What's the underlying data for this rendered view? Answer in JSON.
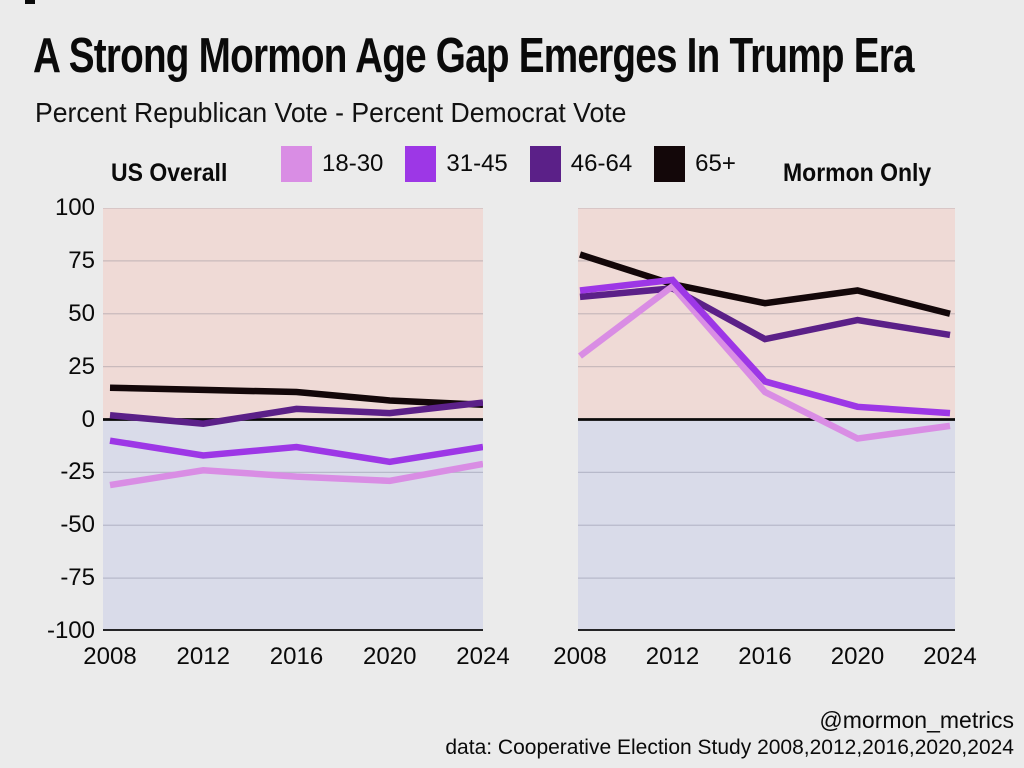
{
  "page": {
    "title": "A Strong Mormon Age Gap Emerges In Trump Era",
    "subtitle": "Percent Republican Vote - Percent Democrat Vote",
    "footer_handle": "@mormon_metrics",
    "footer_source": "data: Cooperative Election Study 2008,2012,2016,2020,2024"
  },
  "colors": {
    "page_bg": "#EBEBEB",
    "text": "#0A0A0A",
    "pos_bg": "#EFDAD6",
    "neg_bg": "#D9DBE9",
    "pos_grid": "#C9BABC",
    "neg_grid": "#B7B9CA",
    "axis": "#0A0A0A"
  },
  "legend": {
    "items": [
      {
        "label": "18-30",
        "color": "#D98DE4"
      },
      {
        "label": "31-45",
        "color": "#9D37E6"
      },
      {
        "label": "46-64",
        "color": "#5B2088"
      },
      {
        "label": "65+",
        "color": "#130709"
      }
    ]
  },
  "chart_data": [
    {
      "type": "line",
      "title": "US Overall",
      "x": [
        2008,
        2012,
        2016,
        2020,
        2024
      ],
      "x_labels": [
        "2008",
        "2012",
        "2016",
        "2020",
        "2024"
      ],
      "ylim": [
        -100,
        100
      ],
      "yticks": [
        100,
        75,
        50,
        25,
        0,
        -25,
        -50,
        -75,
        -100
      ],
      "ytick_labels": [
        "100",
        "75",
        "50",
        "25",
        "0",
        "-25",
        "-50",
        "-75",
        "-100"
      ],
      "grid": true,
      "legend_position": "top-center",
      "series": [
        {
          "name": "18-30",
          "values": [
            -31,
            -24,
            -27,
            -29,
            -21
          ]
        },
        {
          "name": "31-45",
          "values": [
            -10,
            -17,
            -13,
            -20,
            -13
          ]
        },
        {
          "name": "46-64",
          "values": [
            2,
            -2,
            5,
            3,
            8
          ]
        },
        {
          "name": "65+",
          "values": [
            15,
            14,
            13,
            9,
            7
          ]
        }
      ]
    },
    {
      "type": "line",
      "title": "Mormon Only",
      "x": [
        2008,
        2012,
        2016,
        2020,
        2024
      ],
      "x_labels": [
        "2008",
        "2012",
        "2016",
        "2020",
        "2024"
      ],
      "ylim": [
        -100,
        100
      ],
      "yticks": [
        100,
        75,
        50,
        25,
        0,
        -25,
        -50,
        -75,
        -100
      ],
      "ytick_labels": [
        "100",
        "75",
        "50",
        "25",
        "0",
        "-25",
        "-50",
        "-75",
        "-100"
      ],
      "grid": true,
      "legend_position": "top-center",
      "series": [
        {
          "name": "18-30",
          "values": [
            30,
            63,
            13,
            -9,
            -3
          ]
        },
        {
          "name": "31-45",
          "values": [
            61,
            66,
            18,
            6,
            3
          ]
        },
        {
          "name": "46-64",
          "values": [
            58,
            62,
            38,
            47,
            40
          ]
        },
        {
          "name": "65+",
          "values": [
            78,
            64,
            55,
            61,
            50
          ]
        }
      ]
    }
  ]
}
